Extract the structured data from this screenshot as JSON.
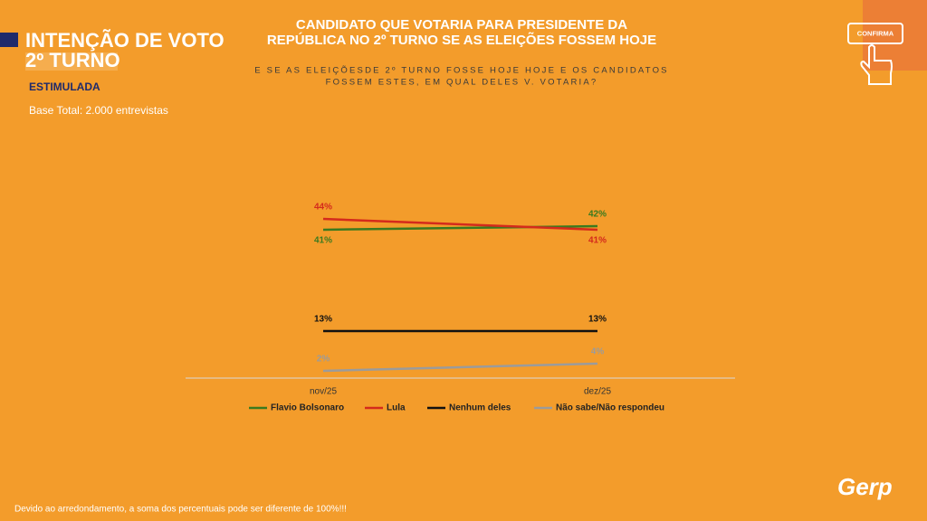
{
  "header": {
    "title_lines": [
      "INTENÇÃO DE VOTO",
      "2º TURNO"
    ],
    "tag": "ESTIMULADA",
    "base": "Base Total: 2.000 entrevistas"
  },
  "badge": "CONFIRMA",
  "chart_data": {
    "type": "line",
    "title_lines": [
      "CANDIDATO QUE VOTARIA PARA PRESIDENTE DA",
      "REPÚBLICA NO 2º TURNO SE AS ELEIÇÕES FOSSEM HOJE"
    ],
    "subtitle_lines": [
      "E SE AS ELEIÇÕESDE 2º TURNO FOSSE HOJE HOJE E OS CANDIDATOS",
      "FOSSEM ESTES, EM QUAL DELES V. VOTARIA?"
    ],
    "categories": [
      "nov/25",
      "dez/25"
    ],
    "series": [
      {
        "name": "Flavio Bolsonaro",
        "color": "#3b7a1f",
        "values": [
          41,
          42
        ],
        "value_labels": [
          "41%",
          "42%"
        ]
      },
      {
        "name": "Lula",
        "color": "#d42a1c",
        "values": [
          44,
          41
        ],
        "value_labels": [
          "44%",
          "41%"
        ]
      },
      {
        "name": "Nenhum deles",
        "color": "#111111",
        "values": [
          13,
          13
        ],
        "value_labels": [
          "13%",
          "13%"
        ]
      },
      {
        "name": "Não sabe/Não respondeu",
        "color": "#9b9b9b",
        "values": [
          2,
          4
        ],
        "value_labels": [
          "2%",
          "4%"
        ]
      }
    ],
    "ylim": [
      0,
      60
    ]
  },
  "footnote": "Devido ao arredondamento, a soma dos percentuais pode ser diferente de 100%!!!",
  "logo": "Gerp"
}
